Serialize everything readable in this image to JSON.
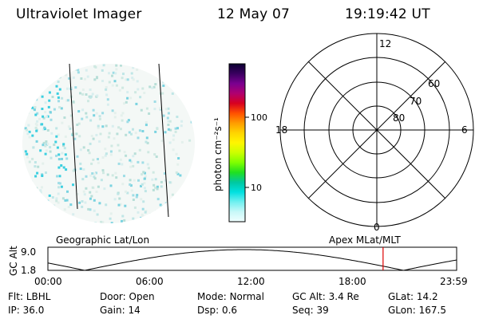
{
  "header": {
    "instrument": "Ultraviolet Imager",
    "date": "12 May 07",
    "time": "19:19:42 UT"
  },
  "colorbar": {
    "unit_label": "photon cm⁻²s⁻¹",
    "ticks": [
      "100",
      "10"
    ],
    "scale": "log",
    "colors": [
      "#0a0030",
      "#3a0060",
      "#7a0090",
      "#b00070",
      "#d80020",
      "#ff5000",
      "#ff9c00",
      "#ffd400",
      "#fff600",
      "#ccff00",
      "#7fff00",
      "#20e020",
      "#00c8a0",
      "#00e0e0",
      "#70f0f0",
      "#c8f8f8",
      "#f0ffff"
    ]
  },
  "polar_plot": {
    "mlt_labels": {
      "top": "12",
      "left": "18",
      "right": "6",
      "bottom": "0"
    },
    "lat_labels": [
      "60",
      "70",
      "80"
    ]
  },
  "altitude_plot": {
    "left_title": "Geographic Lat/Lon",
    "right_title": "Apex MLat/MLT",
    "ylabel": "GC Alt",
    "yticks": [
      "9.0",
      "1.8"
    ],
    "xticks": [
      "00:00",
      "06:00",
      "12:00",
      "18:00",
      "23:59"
    ],
    "current_time_fraction": 0.82,
    "marker_color": "#dd0000"
  },
  "info": {
    "row1": [
      {
        "label": "Flt:",
        "value": "LBHL"
      },
      {
        "label": "Door:",
        "value": "Open"
      },
      {
        "label": "Mode:",
        "value": "Normal"
      },
      {
        "label": "GC Alt:",
        "value": "3.4 Re"
      },
      {
        "label": "GLat:",
        "value": "14.2"
      }
    ],
    "row2": [
      {
        "label": "IP:",
        "value": "36.0"
      },
      {
        "label": "Gain:",
        "value": "14"
      },
      {
        "label": "Dsp:",
        "value": "0.6"
      },
      {
        "label": "Seq:",
        "value": "39"
      },
      {
        "label": "GLon:",
        "value": "167.5"
      }
    ]
  }
}
